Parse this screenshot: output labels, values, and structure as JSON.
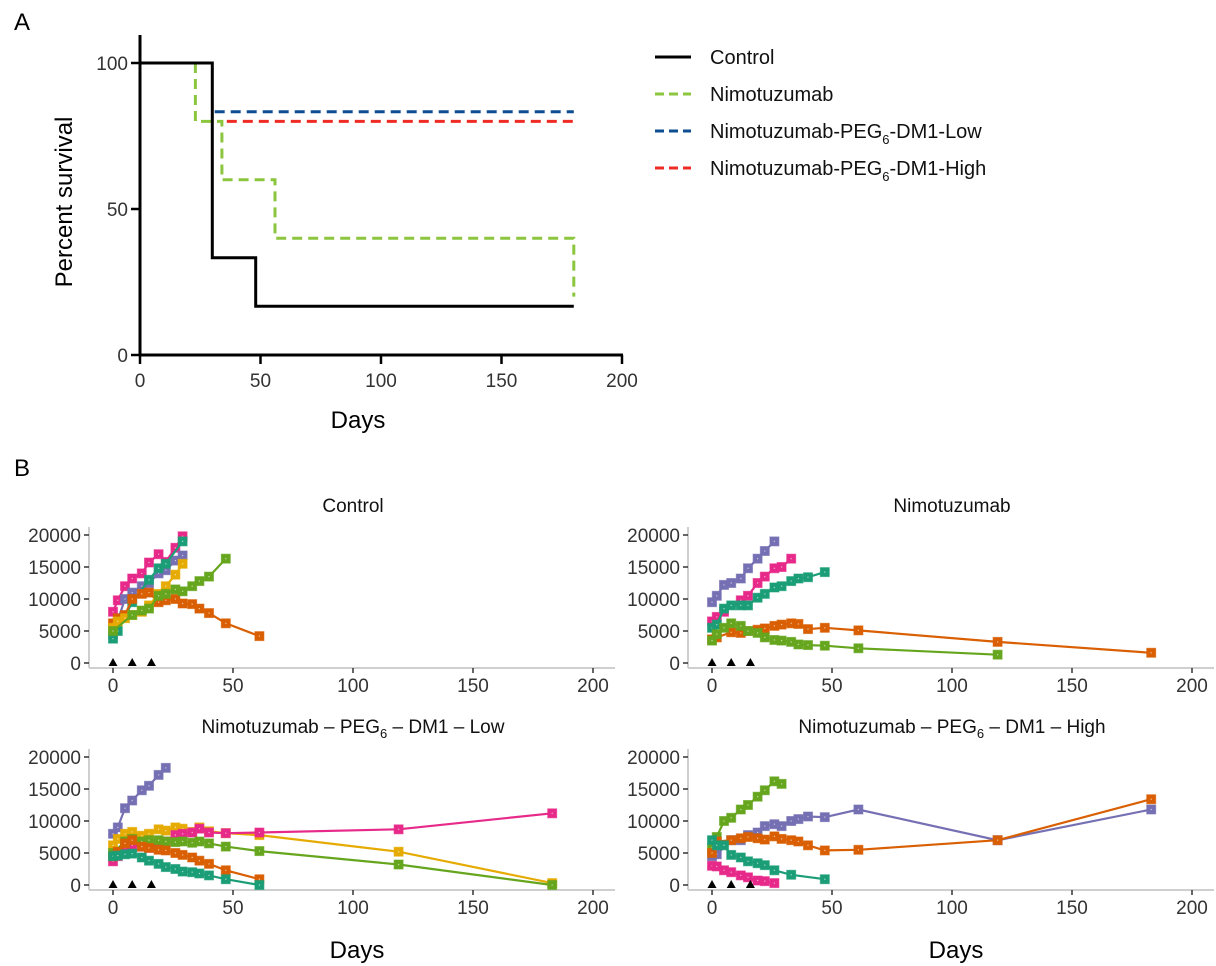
{
  "panels": {
    "a_label": "A",
    "b_label": "B"
  },
  "chart_data": [
    {
      "type": "line",
      "subtype": "step",
      "title": "",
      "xlabel": "Days",
      "ylabel": "Percent survival",
      "xlim": [
        0,
        200
      ],
      "ylim": [
        0,
        110
      ],
      "xticks": [
        "0",
        "50",
        "100",
        "150",
        "200"
      ],
      "yticks": [
        "0",
        "50",
        "100"
      ],
      "legend_position": "right",
      "series": [
        {
          "name": "Control",
          "color": "#000000",
          "dash": "solid",
          "x": [
            0,
            30,
            30,
            48,
            48,
            180
          ],
          "y": [
            100,
            100,
            33.3,
            33.3,
            16.7,
            16.7
          ]
        },
        {
          "name": "Nimotuzumab",
          "color": "#8cc63f",
          "dash": "dashed",
          "x": [
            23,
            23,
            34,
            34,
            56,
            56,
            180,
            180
          ],
          "y": [
            100,
            80,
            80,
            60,
            60,
            40,
            40,
            20
          ]
        },
        {
          "name": "Nimotuzumab-PEG6-DM1-Low",
          "label_main": "Nimotuzumab-PEG",
          "label_sub": "6",
          "label_tail": "-DM1-Low",
          "color": "#0d4d92",
          "dash": "dashed",
          "x": [
            31,
            180
          ],
          "y": [
            83.3,
            83.3
          ]
        },
        {
          "name": "Nimotuzumab-PEG6-DM1-High",
          "label_main": "Nimotuzumab-PEG",
          "label_sub": "6",
          "label_tail": "-DM1-High",
          "color": "#ee2b24",
          "dash": "dashed",
          "x": [
            36,
            180
          ],
          "y": [
            80,
            80
          ]
        }
      ]
    },
    {
      "type": "line",
      "facet": "Control",
      "title": "Control",
      "xlabel": "",
      "ylabel": "",
      "xlim": [
        0,
        200
      ],
      "ylim": [
        0,
        20000
      ],
      "xticks": [
        "0",
        "50",
        "100",
        "150",
        "200"
      ],
      "yticks": [
        "0",
        "5000",
        "10000",
        "15000",
        "20000"
      ],
      "dosing_days": [
        0,
        8,
        16
      ],
      "series": [
        {
          "color": "#e7298a",
          "x": [
            0,
            2,
            5,
            8,
            12,
            15,
            19,
            22,
            26,
            29
          ],
          "y": [
            8000,
            9800,
            12000,
            13200,
            14000,
            15700,
            17000,
            15800,
            18000,
            19800
          ]
        },
        {
          "color": "#7570b3",
          "x": [
            0,
            5,
            8,
            12,
            15,
            19,
            22,
            26,
            29
          ],
          "y": [
            4500,
            10000,
            11000,
            12000,
            12500,
            14000,
            14500,
            16000,
            16800
          ]
        },
        {
          "color": "#1b9e77",
          "x": [
            0,
            2,
            8,
            15,
            19,
            22,
            29
          ],
          "y": [
            3800,
            5000,
            9500,
            13000,
            14800,
            15500,
            19000
          ]
        },
        {
          "color": "#d95f02",
          "x": [
            0,
            2,
            5,
            8,
            12,
            15,
            19,
            22,
            26,
            29,
            33,
            36,
            40,
            47,
            61
          ],
          "y": [
            6200,
            7000,
            7500,
            10000,
            10800,
            11000,
            9500,
            9800,
            10000,
            9300,
            9200,
            8500,
            7800,
            6200,
            4200
          ]
        },
        {
          "color": "#e6ab02",
          "x": [
            0,
            2,
            5,
            8,
            12,
            15,
            19,
            22,
            26,
            29
          ],
          "y": [
            5500,
            6500,
            7000,
            7500,
            8000,
            9000,
            10800,
            12000,
            13800,
            15500
          ]
        },
        {
          "color": "#66a61e",
          "x": [
            0,
            8,
            12,
            15,
            19,
            22,
            26,
            29,
            33,
            36,
            40,
            47
          ],
          "y": [
            5000,
            7500,
            8200,
            8500,
            10500,
            10800,
            11500,
            11200,
            12000,
            12800,
            13500,
            16300
          ]
        }
      ]
    },
    {
      "type": "line",
      "facet": "Nimotuzumab",
      "title": "Nimotuzumab",
      "xlabel": "",
      "ylabel": "",
      "xlim": [
        0,
        200
      ],
      "ylim": [
        0,
        20000
      ],
      "xticks": [
        "0",
        "50",
        "100",
        "150",
        "200"
      ],
      "yticks": [
        "0",
        "5000",
        "10000",
        "15000",
        "20000"
      ],
      "dosing_days": [
        0,
        8,
        16
      ],
      "series": [
        {
          "color": "#7570b3",
          "x": [
            0,
            2,
            5,
            8,
            12,
            15,
            19,
            22,
            26
          ],
          "y": [
            9500,
            10500,
            12200,
            12500,
            13200,
            14800,
            16300,
            17500,
            19000
          ]
        },
        {
          "color": "#e7298a",
          "x": [
            0,
            2,
            5,
            12,
            15,
            19,
            22,
            26,
            29,
            33
          ],
          "y": [
            6500,
            7200,
            8000,
            9800,
            10500,
            12500,
            13500,
            14800,
            15000,
            16300
          ]
        },
        {
          "color": "#1b9e77",
          "x": [
            0,
            2,
            5,
            8,
            12,
            15,
            19,
            22,
            26,
            29,
            33,
            36,
            40,
            47
          ],
          "y": [
            5500,
            6000,
            8500,
            9000,
            9000,
            9000,
            10200,
            10800,
            11800,
            12000,
            12800,
            13200,
            13400,
            14200
          ]
        },
        {
          "color": "#d95f02",
          "x": [
            0,
            2,
            8,
            12,
            15,
            19,
            22,
            26,
            29,
            33,
            36,
            40,
            47,
            61,
            119,
            183
          ],
          "y": [
            3700,
            4000,
            4800,
            4700,
            5000,
            5200,
            5400,
            5800,
            6000,
            6200,
            6100,
            5300,
            5500,
            5100,
            3300,
            1600
          ]
        },
        {
          "color": "#66a61e",
          "x": [
            0,
            2,
            5,
            8,
            12,
            15,
            19,
            22,
            26,
            29,
            33,
            36,
            40,
            47,
            61,
            119
          ],
          "y": [
            3500,
            4500,
            5500,
            6200,
            5800,
            5000,
            4700,
            4000,
            3600,
            3500,
            3300,
            2900,
            2800,
            2700,
            2300,
            1300
          ]
        }
      ]
    },
    {
      "type": "line",
      "facet": "Nimotuzumab-PEG6-DM1-Low",
      "title_main": "Nimotuzumab – PEG",
      "title_sub": "6",
      "title_tail": " – DM1 – Low",
      "xlabel": "Days",
      "ylabel": "",
      "xlim": [
        0,
        200
      ],
      "ylim": [
        0,
        20000
      ],
      "xticks": [
        "0",
        "50",
        "100",
        "150",
        "200"
      ],
      "yticks": [
        "0",
        "5000",
        "10000",
        "15000",
        "20000"
      ],
      "dosing_days": [
        0,
        8,
        16
      ],
      "series": [
        {
          "color": "#7570b3",
          "x": [
            0,
            2,
            5,
            8,
            12,
            15,
            19,
            22
          ],
          "y": [
            8000,
            9000,
            12000,
            13200,
            14800,
            15500,
            17200,
            18300
          ]
        },
        {
          "color": "#e6ab02",
          "x": [
            0,
            2,
            5,
            8,
            12,
            15,
            19,
            22,
            26,
            29,
            33,
            36,
            40,
            47,
            61,
            119,
            183
          ],
          "y": [
            6200,
            7200,
            8000,
            8300,
            7700,
            8000,
            8700,
            8500,
            9000,
            8800,
            8300,
            9000,
            8400,
            8100,
            7800,
            5200,
            300
          ]
        },
        {
          "color": "#e7298a",
          "x": [
            0,
            2,
            5,
            8,
            12,
            15,
            19,
            22,
            26,
            29,
            33,
            36,
            40,
            47,
            61,
            119,
            183
          ],
          "y": [
            3700,
            4500,
            5800,
            6200,
            6000,
            5800,
            6500,
            6800,
            7800,
            8000,
            8200,
            8800,
            8200,
            8100,
            8200,
            8700,
            11200
          ]
        },
        {
          "color": "#66a61e",
          "x": [
            0,
            5,
            8,
            12,
            15,
            19,
            22,
            26,
            29,
            33,
            36,
            40,
            47,
            61,
            119,
            183
          ],
          "y": [
            5000,
            6800,
            7200,
            6800,
            7000,
            7000,
            6800,
            6700,
            6800,
            6600,
            6800,
            6500,
            6000,
            5300,
            3200,
            0
          ]
        },
        {
          "color": "#d95f02",
          "x": [
            0,
            2,
            5,
            8,
            12,
            15,
            19,
            22,
            26,
            29,
            33,
            36,
            40,
            47,
            61
          ],
          "y": [
            4500,
            5200,
            6500,
            7000,
            6000,
            5800,
            5500,
            5400,
            5000,
            4700,
            4300,
            3800,
            3300,
            2300,
            900
          ]
        },
        {
          "color": "#1b9e77",
          "x": [
            0,
            2,
            5,
            8,
            12,
            15,
            19,
            22,
            26,
            29,
            33,
            36,
            40,
            47,
            61
          ],
          "y": [
            4500,
            4600,
            4800,
            4900,
            4300,
            3800,
            3300,
            2800,
            2500,
            2100,
            2000,
            1800,
            1500,
            900,
            0
          ]
        }
      ]
    },
    {
      "type": "line",
      "facet": "Nimotuzumab-PEG6-DM1-High",
      "title_main": "Nimotuzumab – PEG",
      "title_sub": "6",
      "title_tail": " – DM1 – High",
      "xlabel": "Days",
      "ylabel": "",
      "xlim": [
        0,
        200
      ],
      "ylim": [
        0,
        20000
      ],
      "xticks": [
        "0",
        "50",
        "100",
        "150",
        "200"
      ],
      "yticks": [
        "0",
        "5000",
        "10000",
        "15000",
        "20000"
      ],
      "dosing_days": [
        0,
        8,
        16
      ],
      "series": [
        {
          "color": "#66a61e",
          "x": [
            0,
            2,
            5,
            8,
            12,
            15,
            19,
            22,
            26,
            29
          ],
          "y": [
            5800,
            7500,
            10000,
            10500,
            11800,
            12500,
            13800,
            14800,
            16200,
            15800
          ]
        },
        {
          "color": "#7570b3",
          "x": [
            0,
            2,
            8,
            12,
            15,
            19,
            22,
            26,
            29,
            33,
            36,
            40,
            47,
            61,
            119,
            183
          ],
          "y": [
            4500,
            4800,
            7000,
            7000,
            7800,
            8200,
            9200,
            9500,
            9200,
            10000,
            10300,
            10700,
            10600,
            11800,
            7000,
            11800
          ]
        },
        {
          "color": "#d95f02",
          "x": [
            0,
            2,
            8,
            12,
            15,
            19,
            22,
            26,
            29,
            33,
            36,
            40,
            47,
            61,
            119,
            183
          ],
          "y": [
            5000,
            6800,
            7000,
            7300,
            7500,
            7300,
            7100,
            7600,
            7200,
            7000,
            6800,
            6200,
            5400,
            5500,
            7000,
            13400
          ]
        },
        {
          "color": "#1b9e77",
          "x": [
            0,
            2,
            5,
            8,
            12,
            15,
            19,
            22,
            26,
            33,
            47
          ],
          "y": [
            7000,
            6200,
            6200,
            4700,
            4300,
            3700,
            3400,
            3100,
            2300,
            1600,
            900
          ]
        },
        {
          "color": "#e7298a",
          "x": [
            0,
            2,
            5,
            8,
            12,
            15,
            19,
            22,
            26
          ],
          "y": [
            3000,
            2900,
            2300,
            2000,
            1500,
            1200,
            700,
            600,
            300
          ]
        }
      ]
    }
  ]
}
